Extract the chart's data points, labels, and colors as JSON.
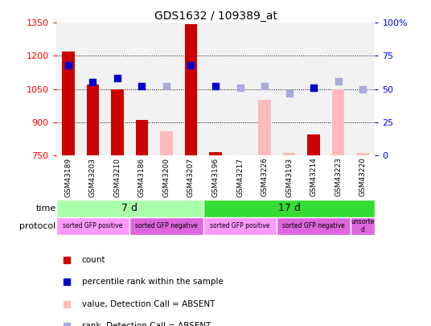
{
  "title": "GDS1632 / 109389_at",
  "samples": [
    "GSM43189",
    "GSM43203",
    "GSM43210",
    "GSM43186",
    "GSM43200",
    "GSM43207",
    "GSM43196",
    "GSM43217",
    "GSM43226",
    "GSM43193",
    "GSM43214",
    "GSM43223",
    "GSM43220"
  ],
  "count_values": [
    1220,
    1070,
    1050,
    910,
    null,
    1345,
    765,
    null,
    null,
    null,
    845,
    null,
    null
  ],
  "count_absent": [
    null,
    null,
    null,
    null,
    860,
    null,
    null,
    750,
    1000,
    760,
    null,
    1050,
    760
  ],
  "rank_present": [
    68,
    55,
    58,
    52,
    null,
    68,
    52,
    null,
    null,
    null,
    51,
    null,
    null
  ],
  "rank_absent": [
    null,
    null,
    null,
    null,
    52,
    null,
    null,
    51,
    52,
    47,
    null,
    56,
    50
  ],
  "ylim": [
    750,
    1350
  ],
  "yticks": [
    750,
    900,
    1050,
    1200,
    1350
  ],
  "y2lim": [
    0,
    100
  ],
  "y2ticks": [
    0,
    25,
    50,
    75,
    100
  ],
  "time_groups": [
    {
      "label": "7 d",
      "start": 0,
      "end": 6,
      "color": "#aaffaa"
    },
    {
      "label": "17 d",
      "start": 6,
      "end": 13,
      "color": "#33dd33"
    }
  ],
  "protocol_groups": [
    {
      "label": "sorted GFP positive",
      "start": 0,
      "end": 3,
      "color": "#ff99ff"
    },
    {
      "label": "sorted GFP negative",
      "start": 3,
      "end": 6,
      "color": "#dd66dd"
    },
    {
      "label": "sorted GFP positive",
      "start": 6,
      "end": 9,
      "color": "#ff99ff"
    },
    {
      "label": "sorted GFP negative",
      "start": 9,
      "end": 12,
      "color": "#dd66dd"
    },
    {
      "label": "unsorte\nd",
      "start": 12,
      "end": 13,
      "color": "#dd66dd"
    }
  ],
  "color_count": "#cc0000",
  "color_rank": "#0000cc",
  "color_absent_val": "#ffbbbb",
  "color_absent_rank": "#aaaadd",
  "bar_width": 0.5,
  "dot_size": 40,
  "background_color": "#ffffff",
  "plot_bg": "#f2f2f2",
  "xlabel_bg": "#cccccc"
}
